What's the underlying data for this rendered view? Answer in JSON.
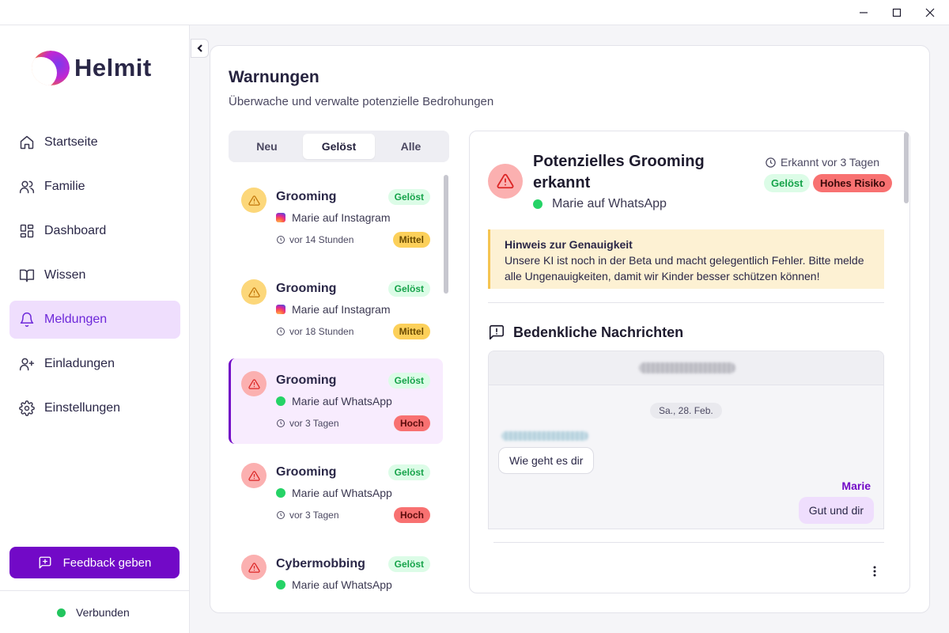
{
  "app": {
    "name": "Helmit"
  },
  "window": {
    "minimize_icon": "minimize-icon",
    "maximize_icon": "maximize-icon",
    "close_icon": "close-icon"
  },
  "sidebar": {
    "items": [
      {
        "label": "Startseite",
        "icon": "home-icon"
      },
      {
        "label": "Familie",
        "icon": "users-icon"
      },
      {
        "label": "Dashboard",
        "icon": "dashboard-icon"
      },
      {
        "label": "Wissen",
        "icon": "book-icon"
      },
      {
        "label": "Meldungen",
        "icon": "bell-icon",
        "active": true
      },
      {
        "label": "Einladungen",
        "icon": "user-plus-icon"
      },
      {
        "label": "Einstellungen",
        "icon": "gear-icon"
      }
    ],
    "feedback_label": "Feedback geben",
    "status_label": "Verbunden"
  },
  "page": {
    "title": "Warnungen",
    "subtitle": "Überwache und verwalte potenzielle Bedrohungen"
  },
  "tabs": [
    {
      "label": "Neu"
    },
    {
      "label": "Gelöst",
      "active": true
    },
    {
      "label": "Alle"
    }
  ],
  "alerts": [
    {
      "title": "Grooming",
      "status": "Gelöst",
      "source": "Marie auf Instagram",
      "platform": "instagram",
      "time": "vor 14 Stunden",
      "severity": "Mittel",
      "level": "warn"
    },
    {
      "title": "Grooming",
      "status": "Gelöst",
      "source": "Marie auf Instagram",
      "platform": "instagram",
      "time": "vor 18 Stunden",
      "severity": "Mittel",
      "level": "warn"
    },
    {
      "title": "Grooming",
      "status": "Gelöst",
      "source": "Marie auf WhatsApp",
      "platform": "whatsapp",
      "time": "vor 3 Tagen",
      "severity": "Hoch",
      "level": "danger",
      "selected": true
    },
    {
      "title": "Grooming",
      "status": "Gelöst",
      "source": "Marie auf WhatsApp",
      "platform": "whatsapp",
      "time": "vor 3 Tagen",
      "severity": "Hoch",
      "level": "danger"
    },
    {
      "title": "Cybermobbing",
      "status": "Gelöst",
      "source": "Marie auf WhatsApp",
      "platform": "whatsapp",
      "time": "",
      "severity": "",
      "level": "danger"
    }
  ],
  "detail": {
    "title": "Potenzielles Grooming erkannt",
    "source": "Marie auf WhatsApp",
    "detected": "Erkannt vor 3 Tagen",
    "status": "Gelöst",
    "risk": "Hohes Risiko",
    "notice_title": "Hinweis zur Genauigkeit",
    "notice_text": "Unsere KI ist noch in der Beta und macht gelegentlich Fehler. Bitte melde alle Ungenauigkeiten, damit wir Kinder besser schützen können!",
    "messages_title": "Bedenkliche Nachrichten",
    "chat": {
      "date": "Sa., 28. Feb.",
      "incoming": "Wie geht es dir",
      "me_name": "Marie",
      "outgoing": "Gut und dir"
    }
  },
  "colors": {
    "accent": "#7209c7",
    "active_bg": "#efdefd",
    "resolved_bg": "#dcfce7",
    "resolved_text": "#16a34a",
    "medium": "#fcd05a",
    "high": "#f87171",
    "connected": "#22c55e"
  }
}
